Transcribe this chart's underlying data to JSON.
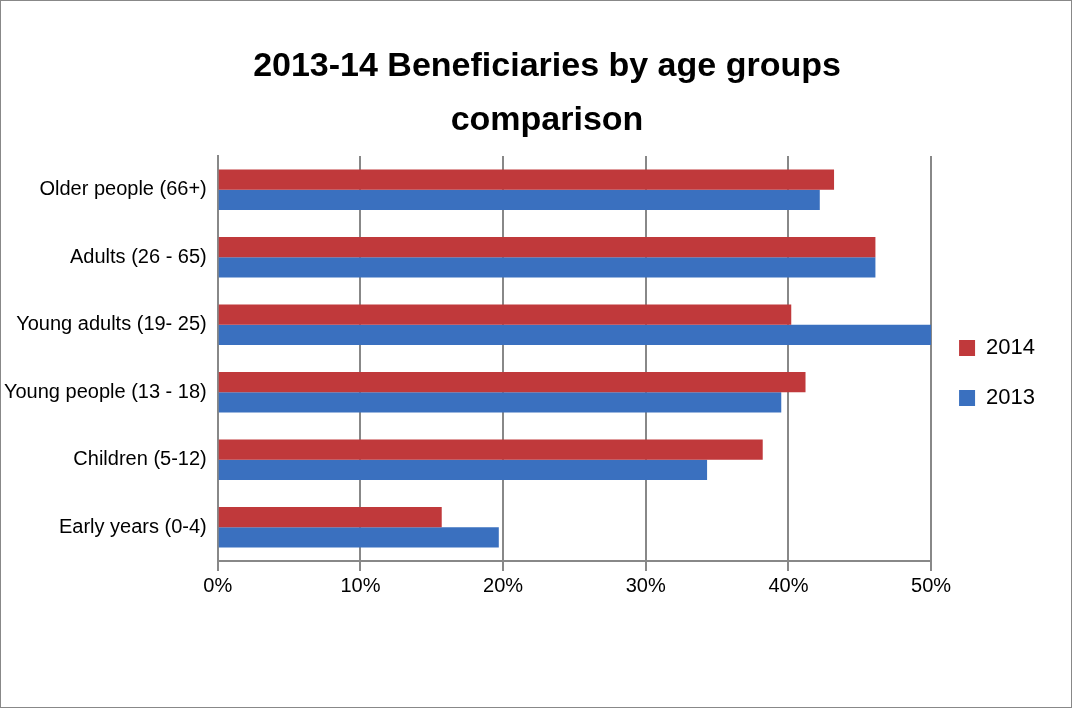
{
  "chart_data": {
    "type": "bar",
    "orientation": "horizontal",
    "title": "2013-14 Beneficiaries by age groups comparison",
    "categories": [
      "Older people (66+)",
      "Adults (26 - 65)",
      "Young adults (19- 25)",
      "Young people (13 - 18)",
      "Children (5-12)",
      "Early years (0-4)"
    ],
    "series": [
      {
        "name": "2014",
        "color": "#c0393b",
        "values": [
          43.2,
          46.1,
          40.2,
          41.2,
          38.2,
          15.7
        ]
      },
      {
        "name": "2013",
        "color": "#3a70bf",
        "values": [
          42.2,
          46.1,
          50,
          39.5,
          34.3,
          19.7
        ]
      }
    ],
    "xlim": [
      0,
      50
    ],
    "xticks": [
      {
        "value": 0,
        "label": "0%"
      },
      {
        "value": 10,
        "label": "10%"
      },
      {
        "value": 20,
        "label": "20%"
      },
      {
        "value": 30,
        "label": "30%"
      },
      {
        "value": 40,
        "label": "40%"
      },
      {
        "value": 50,
        "label": "50%"
      }
    ],
    "grid": "x",
    "legend": "right"
  }
}
